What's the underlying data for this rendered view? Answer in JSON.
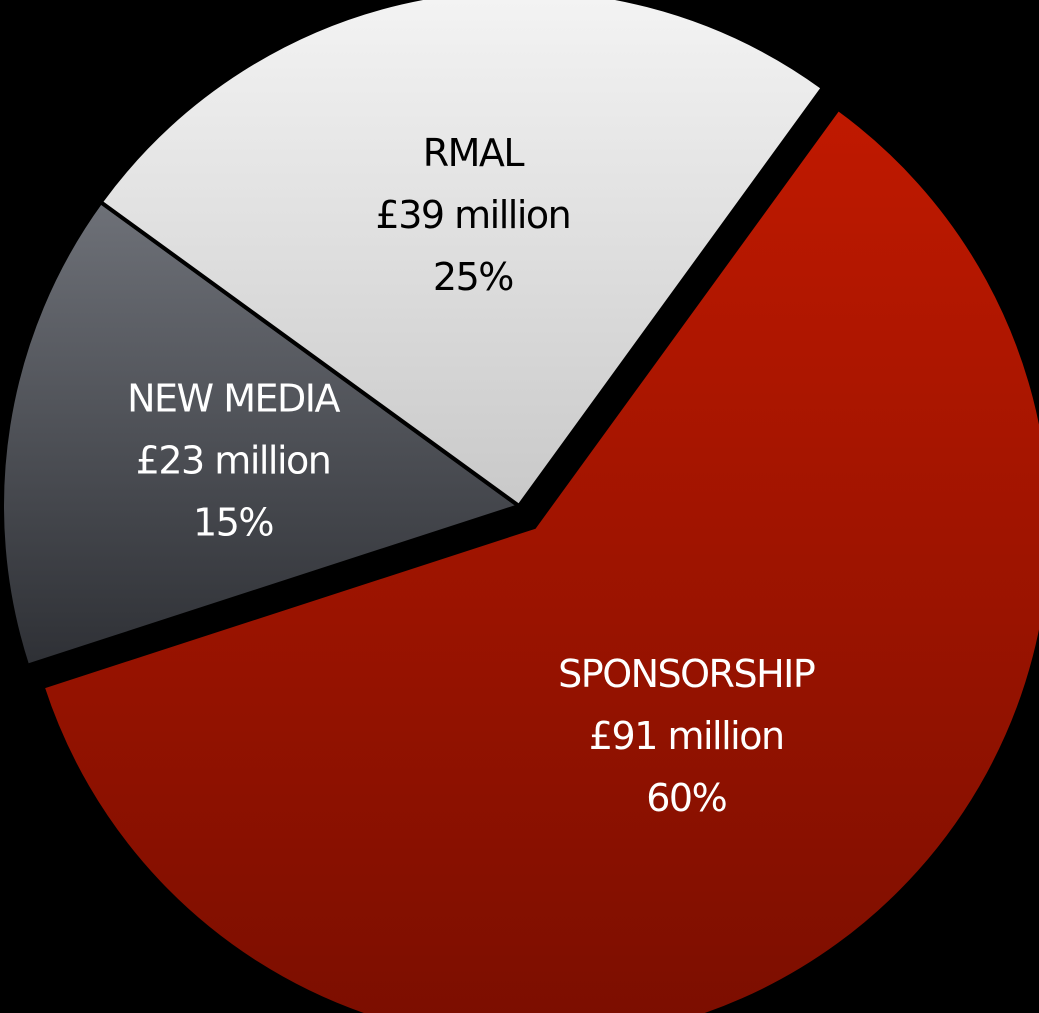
{
  "chart_data": {
    "type": "pie",
    "title": "",
    "slices": [
      {
        "label": "SPONSORSHIP",
        "amount": "£91 million",
        "percent_label": "60%",
        "value": 60,
        "color": "#c01900",
        "color_dark": "#7a0e00",
        "text_color": "#ffffff"
      },
      {
        "label": "NEW MEDIA",
        "amount": "£23 million",
        "percent_label": "15%",
        "value": 15,
        "color": "#6e7178",
        "color_dark": "#2e3035",
        "text_color": "#ffffff"
      },
      {
        "label": "RMAL",
        "amount": "£39 million",
        "percent_label": "25%",
        "value": 25,
        "color": "#f4f4f4",
        "color_dark": "#c9c9c9",
        "text_color": "#000000"
      }
    ]
  }
}
